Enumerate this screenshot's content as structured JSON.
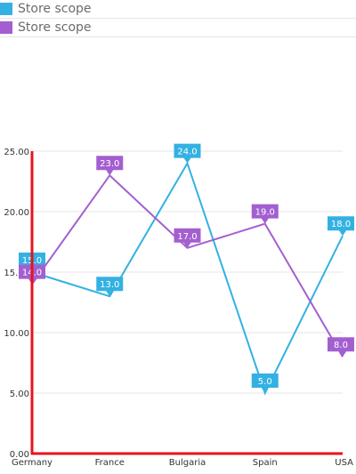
{
  "colors": {
    "axis": "#e8131b",
    "grid": "#e6e6e6"
  },
  "chart_data": {
    "type": "line",
    "categories": [
      "Germany",
      "France",
      "Bulgaria",
      "Spain",
      "USA"
    ],
    "ylim": [
      0,
      25
    ],
    "yticks": [
      "0.00",
      "5.00",
      "10.00",
      "15.00",
      "20.00",
      "25.00"
    ],
    "legend_placement": "top-left",
    "series": [
      {
        "name": "Store scope",
        "color": "#33b1e3",
        "values": [
          15,
          13,
          24,
          5,
          18
        ],
        "labels": [
          "15.0",
          "13.0",
          "24.0",
          "5.0",
          "18.0"
        ]
      },
      {
        "name": "Store scope",
        "color": "#a35fd0",
        "values": [
          14,
          23,
          17,
          19,
          8
        ],
        "labels": [
          "14.0",
          "23.0",
          "17.0",
          "19.0",
          "8.0"
        ]
      }
    ]
  }
}
